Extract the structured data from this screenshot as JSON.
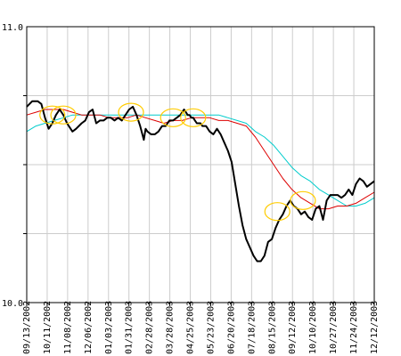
{
  "chart_data": {
    "type": "line",
    "ylim": [
      10.0,
      11.0
    ],
    "y_tick_labels": [
      "11.0",
      "10.0"
    ],
    "x_tick_labels": [
      "09/13/2002",
      "10/11/2002",
      "11/08/2002",
      "12/06/2002",
      "01/03/2003",
      "01/31/2003",
      "02/28/2003",
      "03/28/2003",
      "04/25/2003",
      "05/23/2003",
      "06/20/2003",
      "07/18/2003",
      "08/15/2003",
      "09/12/2003",
      "10/10/2003",
      "10/27/2003",
      "11/24/2003",
      "12/12/2003"
    ],
    "grid": true,
    "colors": {
      "price": "#000000",
      "ma_short": "#dd0000",
      "ma_long": "#00cccc",
      "highlight": "#ffcc00",
      "grid": "#cccccc",
      "frame": "#000000"
    },
    "series": [
      {
        "key": "price",
        "x": [
          0,
          3,
          6,
          8,
          10,
          12,
          14,
          16,
          18,
          20,
          22,
          25,
          27,
          30,
          32,
          34,
          36,
          38,
          40,
          42,
          44,
          46,
          48,
          50,
          52,
          54,
          56,
          58,
          60,
          62,
          64,
          65,
          66,
          68,
          70,
          72,
          74,
          76,
          78,
          80,
          82,
          84,
          85,
          86,
          87,
          88,
          89,
          90,
          91,
          92,
          93,
          95,
          96,
          98,
          100,
          102,
          104,
          106,
          108,
          110,
          112,
          114,
          116,
          118,
          120,
          122,
          124,
          126,
          128,
          130,
          132,
          134,
          136,
          138,
          140,
          142,
          144,
          146,
          148,
          150,
          152,
          154,
          156,
          158,
          160,
          162,
          164,
          166,
          168,
          170,
          172,
          174,
          176,
          177,
          178,
          180,
          182,
          184,
          186,
          188,
          190
        ],
        "y": [
          10.71,
          10.73,
          10.73,
          10.72,
          10.67,
          10.63,
          10.65,
          10.68,
          10.7,
          10.68,
          10.65,
          10.62,
          10.63,
          10.65,
          10.66,
          10.69,
          10.7,
          10.65,
          10.66,
          10.66,
          10.67,
          10.67,
          10.66,
          10.67,
          10.66,
          10.68,
          10.7,
          10.71,
          10.68,
          10.64,
          10.59,
          10.63,
          10.62,
          10.61,
          10.61,
          10.62,
          10.64,
          10.64,
          10.66,
          10.66,
          10.67,
          10.68,
          10.69,
          10.7,
          10.69,
          10.68,
          10.68,
          10.67,
          10.67,
          10.66,
          10.65,
          10.65,
          10.64,
          10.64,
          10.62,
          10.61,
          10.63,
          10.61,
          10.58,
          10.55,
          10.51,
          10.43,
          10.35,
          10.28,
          10.23,
          10.2,
          10.17,
          10.15,
          10.15,
          10.17,
          10.22,
          10.23,
          10.27,
          10.3,
          10.32,
          10.35,
          10.37,
          10.35,
          10.34,
          10.32,
          10.33,
          10.31,
          10.3,
          10.34,
          10.35,
          10.3,
          10.37,
          10.39,
          10.39,
          10.39,
          10.38,
          10.39,
          10.41,
          10.4,
          10.39,
          10.43,
          10.45,
          10.44,
          10.42,
          10.43,
          10.44
        ]
      },
      {
        "key": "ma_short",
        "x": [
          0,
          5,
          10,
          15,
          20,
          25,
          30,
          35,
          40,
          45,
          50,
          55,
          60,
          65,
          70,
          75,
          80,
          85,
          90,
          95,
          100,
          105,
          110,
          115,
          120,
          125,
          130,
          135,
          140,
          145,
          150,
          155,
          160,
          165,
          170,
          175,
          180,
          185,
          190
        ],
        "y": [
          10.68,
          10.69,
          10.7,
          10.7,
          10.7,
          10.69,
          10.68,
          10.68,
          10.68,
          10.67,
          10.67,
          10.67,
          10.68,
          10.67,
          10.66,
          10.65,
          10.66,
          10.66,
          10.67,
          10.67,
          10.67,
          10.66,
          10.66,
          10.65,
          10.64,
          10.6,
          10.55,
          10.5,
          10.45,
          10.41,
          10.38,
          10.36,
          10.34,
          10.34,
          10.35,
          10.35,
          10.36,
          10.38,
          10.4
        ]
      },
      {
        "key": "ma_long",
        "x": [
          0,
          5,
          10,
          15,
          20,
          25,
          30,
          35,
          40,
          45,
          50,
          55,
          60,
          65,
          70,
          75,
          80,
          85,
          90,
          95,
          100,
          105,
          110,
          115,
          120,
          125,
          130,
          135,
          140,
          145,
          150,
          155,
          160,
          165,
          170,
          175,
          180,
          185,
          190
        ],
        "y": [
          10.62,
          10.64,
          10.65,
          10.66,
          10.67,
          10.68,
          10.68,
          10.68,
          10.68,
          10.68,
          10.68,
          10.68,
          10.68,
          10.68,
          10.68,
          10.68,
          10.68,
          10.68,
          10.68,
          10.68,
          10.68,
          10.68,
          10.67,
          10.66,
          10.65,
          10.62,
          10.6,
          10.57,
          10.53,
          10.49,
          10.46,
          10.44,
          10.41,
          10.39,
          10.37,
          10.35,
          10.35,
          10.36,
          10.38
        ]
      }
    ],
    "highlights": [
      {
        "x": 14,
        "y": 10.68
      },
      {
        "x": 20,
        "y": 10.68
      },
      {
        "x": 57,
        "y": 10.69
      },
      {
        "x": 80,
        "y": 10.67
      },
      {
        "x": 91,
        "y": 10.67
      },
      {
        "x": 137,
        "y": 10.33
      },
      {
        "x": 151,
        "y": 10.37
      }
    ],
    "x_range": [
      0,
      190
    ]
  }
}
